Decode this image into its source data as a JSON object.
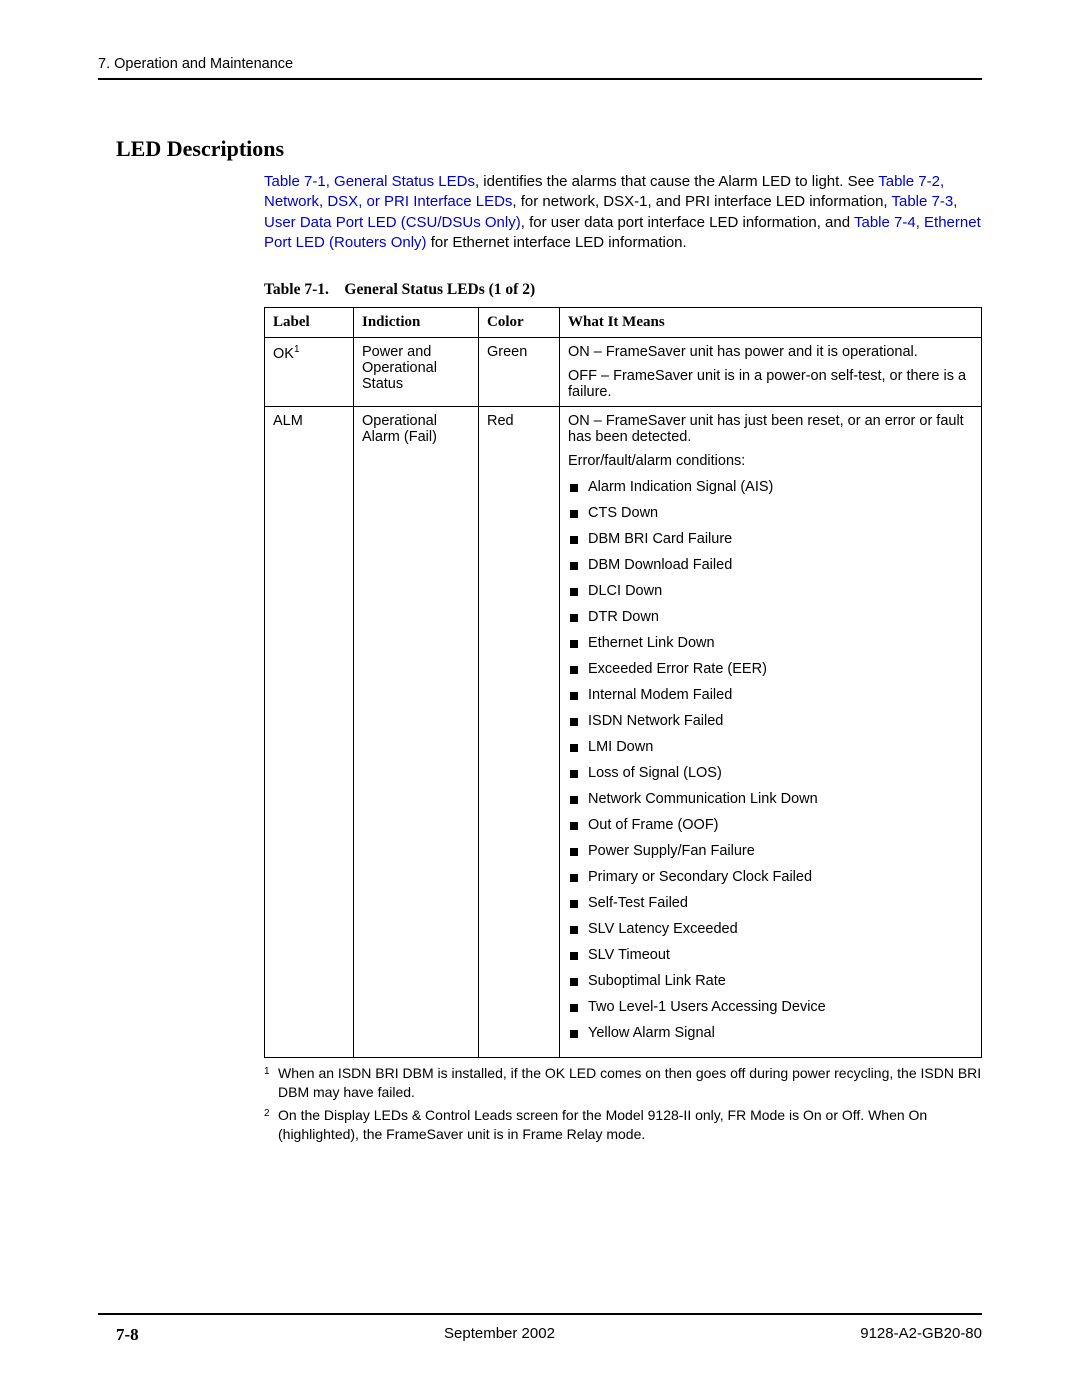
{
  "header": {
    "chapter": "7. Operation and Maintenance"
  },
  "section": {
    "title": "LED Descriptions"
  },
  "intro": {
    "link1": "Table 7-1, General Status LEDs",
    "text1": ", identifies the alarms that cause the Alarm LED to light. See ",
    "link2": "Table 7-2, Network, DSX, or PRI Interface LEDs",
    "text2": ", for network, DSX-1, and PRI interface LED information, ",
    "link3": "Table 7-3, User Data Port LED (CSU/DSUs Only)",
    "text3": ", for user data port interface LED information, and ",
    "link4": "Table 7-4, Ethernet Port LED (Routers Only)",
    "text4": " for Ethernet interface LED information."
  },
  "table": {
    "caption_prefix": "Table 7-1.",
    "caption_title": "General Status LEDs (1 of 2)",
    "headers": {
      "label": "Label",
      "indiction": "Indiction",
      "color": "Color",
      "meaning": "What It Means"
    },
    "row1": {
      "label": "OK",
      "label_sup": "1",
      "indiction": "Power and Operational Status",
      "color": "Green",
      "meaning_on": "ON – FrameSaver unit has power and it is operational.",
      "meaning_off": "OFF – FrameSaver unit is in a power-on self-test, or there is a failure."
    },
    "row2": {
      "label": "ALM",
      "indiction": "Operational Alarm (Fail)",
      "color": "Red",
      "meaning_on": "ON – FrameSaver unit has just been reset, or an error or fault has been detected.",
      "cond_header": "Error/fault/alarm conditions:",
      "conditions": [
        "Alarm Indication Signal (AIS)",
        "CTS Down",
        "DBM BRI Card Failure",
        "DBM Download Failed",
        "DLCI Down",
        "DTR Down",
        "Ethernet Link Down",
        "Exceeded Error Rate (EER)",
        "Internal Modem Failed",
        "ISDN Network Failed",
        "LMI Down",
        "Loss of Signal (LOS)",
        "Network Communication Link Down",
        "Out of Frame (OOF)",
        "Power Supply/Fan Failure",
        "Primary or Secondary Clock Failed",
        "Self-Test Failed",
        "SLV Latency Exceeded",
        "SLV Timeout",
        "Suboptimal Link Rate",
        "Two Level-1 Users Accessing Device",
        "Yellow Alarm Signal"
      ]
    }
  },
  "footnotes": {
    "n1": "1",
    "t1": "When an ISDN BRI DBM is installed, if the OK LED comes on then goes off during power recycling, the ISDN BRI DBM may have failed.",
    "n2": "2",
    "t2": "On the Display LEDs & Control Leads screen for the Model 9128-II only, FR Mode is On or Off. When On (highlighted), the FrameSaver unit is in Frame Relay mode."
  },
  "footer": {
    "page": "7-8",
    "date": "September 2002",
    "docnum": "9128-A2-GB20-80"
  }
}
